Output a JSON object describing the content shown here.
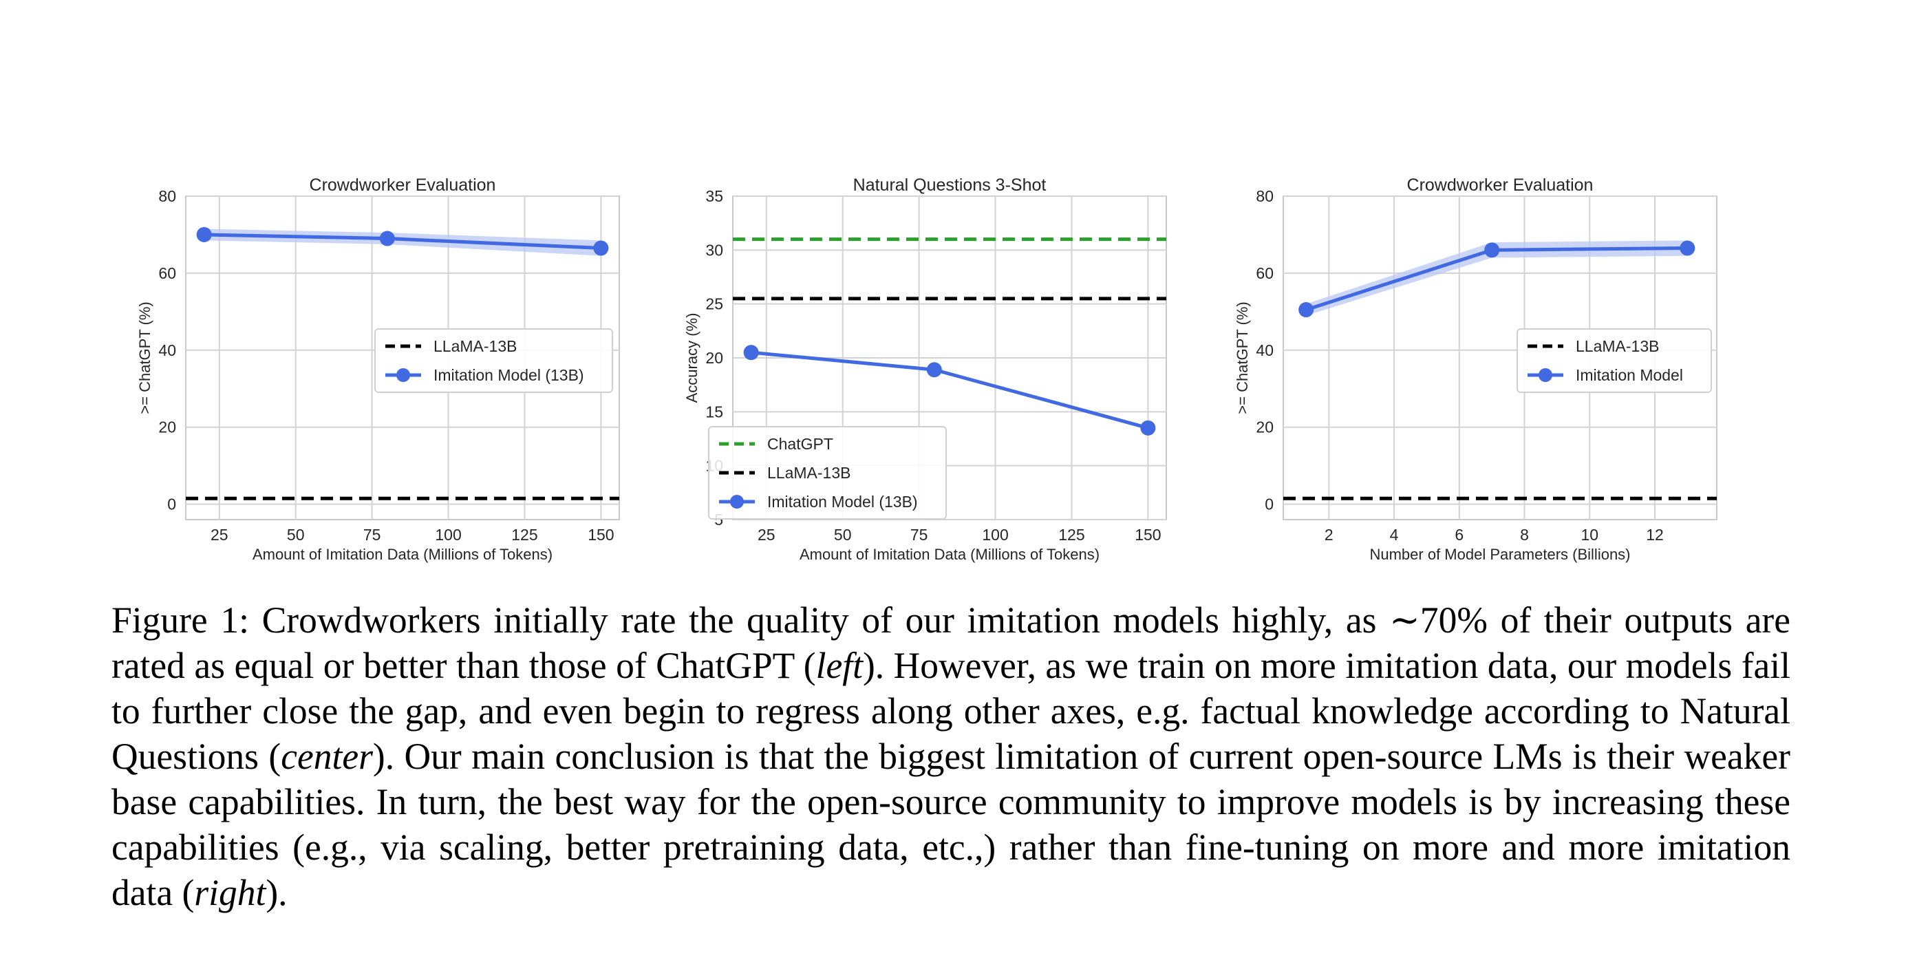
{
  "figure": {
    "caption_parts": [
      "Figure 1: Crowdworkers initially rate the quality of our imitation models highly, as ∼70% of their outputs are rated as equal or better than those of ChatGPT (",
      "left",
      "). However, as we train on more imitation data, our models fail to further close the gap, and even begin to regress along other axes, e.g. factual knowledge according to Natural Questions (",
      "center",
      "). Our main conclusion is that the biggest limitation of current open-source LMs is their weaker base capabilities. In turn, the best way for the open-source community to improve models is by increasing these capabilities (e.g., via scaling, better pretraining data, etc.,) rather than fine-tuning on more and more imitation data (",
      "right",
      ")."
    ]
  },
  "colors": {
    "imitation": "#4169e1",
    "imitation_band": "#b9c7f2",
    "llama": "#000000",
    "chatgpt": "#2ca02c"
  },
  "chart_data": [
    {
      "type": "line",
      "title": "Crowdworker Evaluation",
      "xlabel": "Amount of Imitation Data (Millions of Tokens)",
      "ylabel": ">= ChatGPT (%)",
      "xlim": [
        14,
        156
      ],
      "ylim": [
        -4,
        80
      ],
      "xticks": [
        25,
        50,
        75,
        100,
        125,
        150
      ],
      "yticks": [
        0,
        20,
        40,
        60,
        80
      ],
      "grid": true,
      "legend_position": "center-right",
      "series": [
        {
          "name": "LLaMA-13B",
          "kind": "hline",
          "style": "dashed",
          "color": "#000000",
          "y": 1.5
        },
        {
          "name": "Imitation Model (13B)",
          "kind": "line",
          "marker": "circle",
          "color": "#4169e1",
          "x": [
            20,
            80,
            150
          ],
          "y": [
            70,
            69,
            66.5
          ],
          "band": [
            [
              68.5,
              71.5
            ],
            [
              67.5,
              70.5
            ],
            [
              64.5,
              68.5
            ]
          ]
        }
      ]
    },
    {
      "type": "line",
      "title": "Natural Questions 3-Shot",
      "xlabel": "Amount of Imitation Data (Millions of Tokens)",
      "ylabel": "Accuracy (%)",
      "xlim": [
        14,
        156
      ],
      "ylim": [
        5,
        35
      ],
      "xticks": [
        25,
        50,
        75,
        100,
        125,
        150
      ],
      "yticks": [
        5,
        10,
        15,
        20,
        25,
        30,
        35
      ],
      "grid": true,
      "legend_position": "lower-left",
      "series": [
        {
          "name": "ChatGPT",
          "kind": "hline",
          "style": "dashed",
          "color": "#2ca02c",
          "y": 31
        },
        {
          "name": "LLaMA-13B",
          "kind": "hline",
          "style": "dashed",
          "color": "#000000",
          "y": 25.5
        },
        {
          "name": "Imitation Model (13B)",
          "kind": "line",
          "marker": "circle",
          "color": "#4169e1",
          "x": [
            20,
            80,
            150
          ],
          "y": [
            20.5,
            18.9,
            13.5
          ]
        }
      ]
    },
    {
      "type": "line",
      "title": "Crowdworker Evaluation",
      "xlabel": "Number of Model Parameters (Billions)",
      "ylabel": ">= ChatGPT (%)",
      "xlim": [
        0.6,
        13.9
      ],
      "ylim": [
        -4,
        80
      ],
      "xticks": [
        2,
        4,
        6,
        8,
        10,
        12
      ],
      "yticks": [
        0,
        20,
        40,
        60,
        80
      ],
      "grid": true,
      "legend_position": "center-right",
      "series": [
        {
          "name": "LLaMA-13B",
          "kind": "hline",
          "style": "dashed",
          "color": "#000000",
          "y": 1.5
        },
        {
          "name": "Imitation Model",
          "kind": "line",
          "marker": "circle",
          "color": "#4169e1",
          "x": [
            1.3,
            7,
            13
          ],
          "y": [
            50.5,
            66,
            66.5
          ],
          "band": [
            [
              49,
              52
            ],
            [
              64,
              68
            ],
            [
              64.5,
              68.5
            ]
          ]
        }
      ]
    }
  ]
}
